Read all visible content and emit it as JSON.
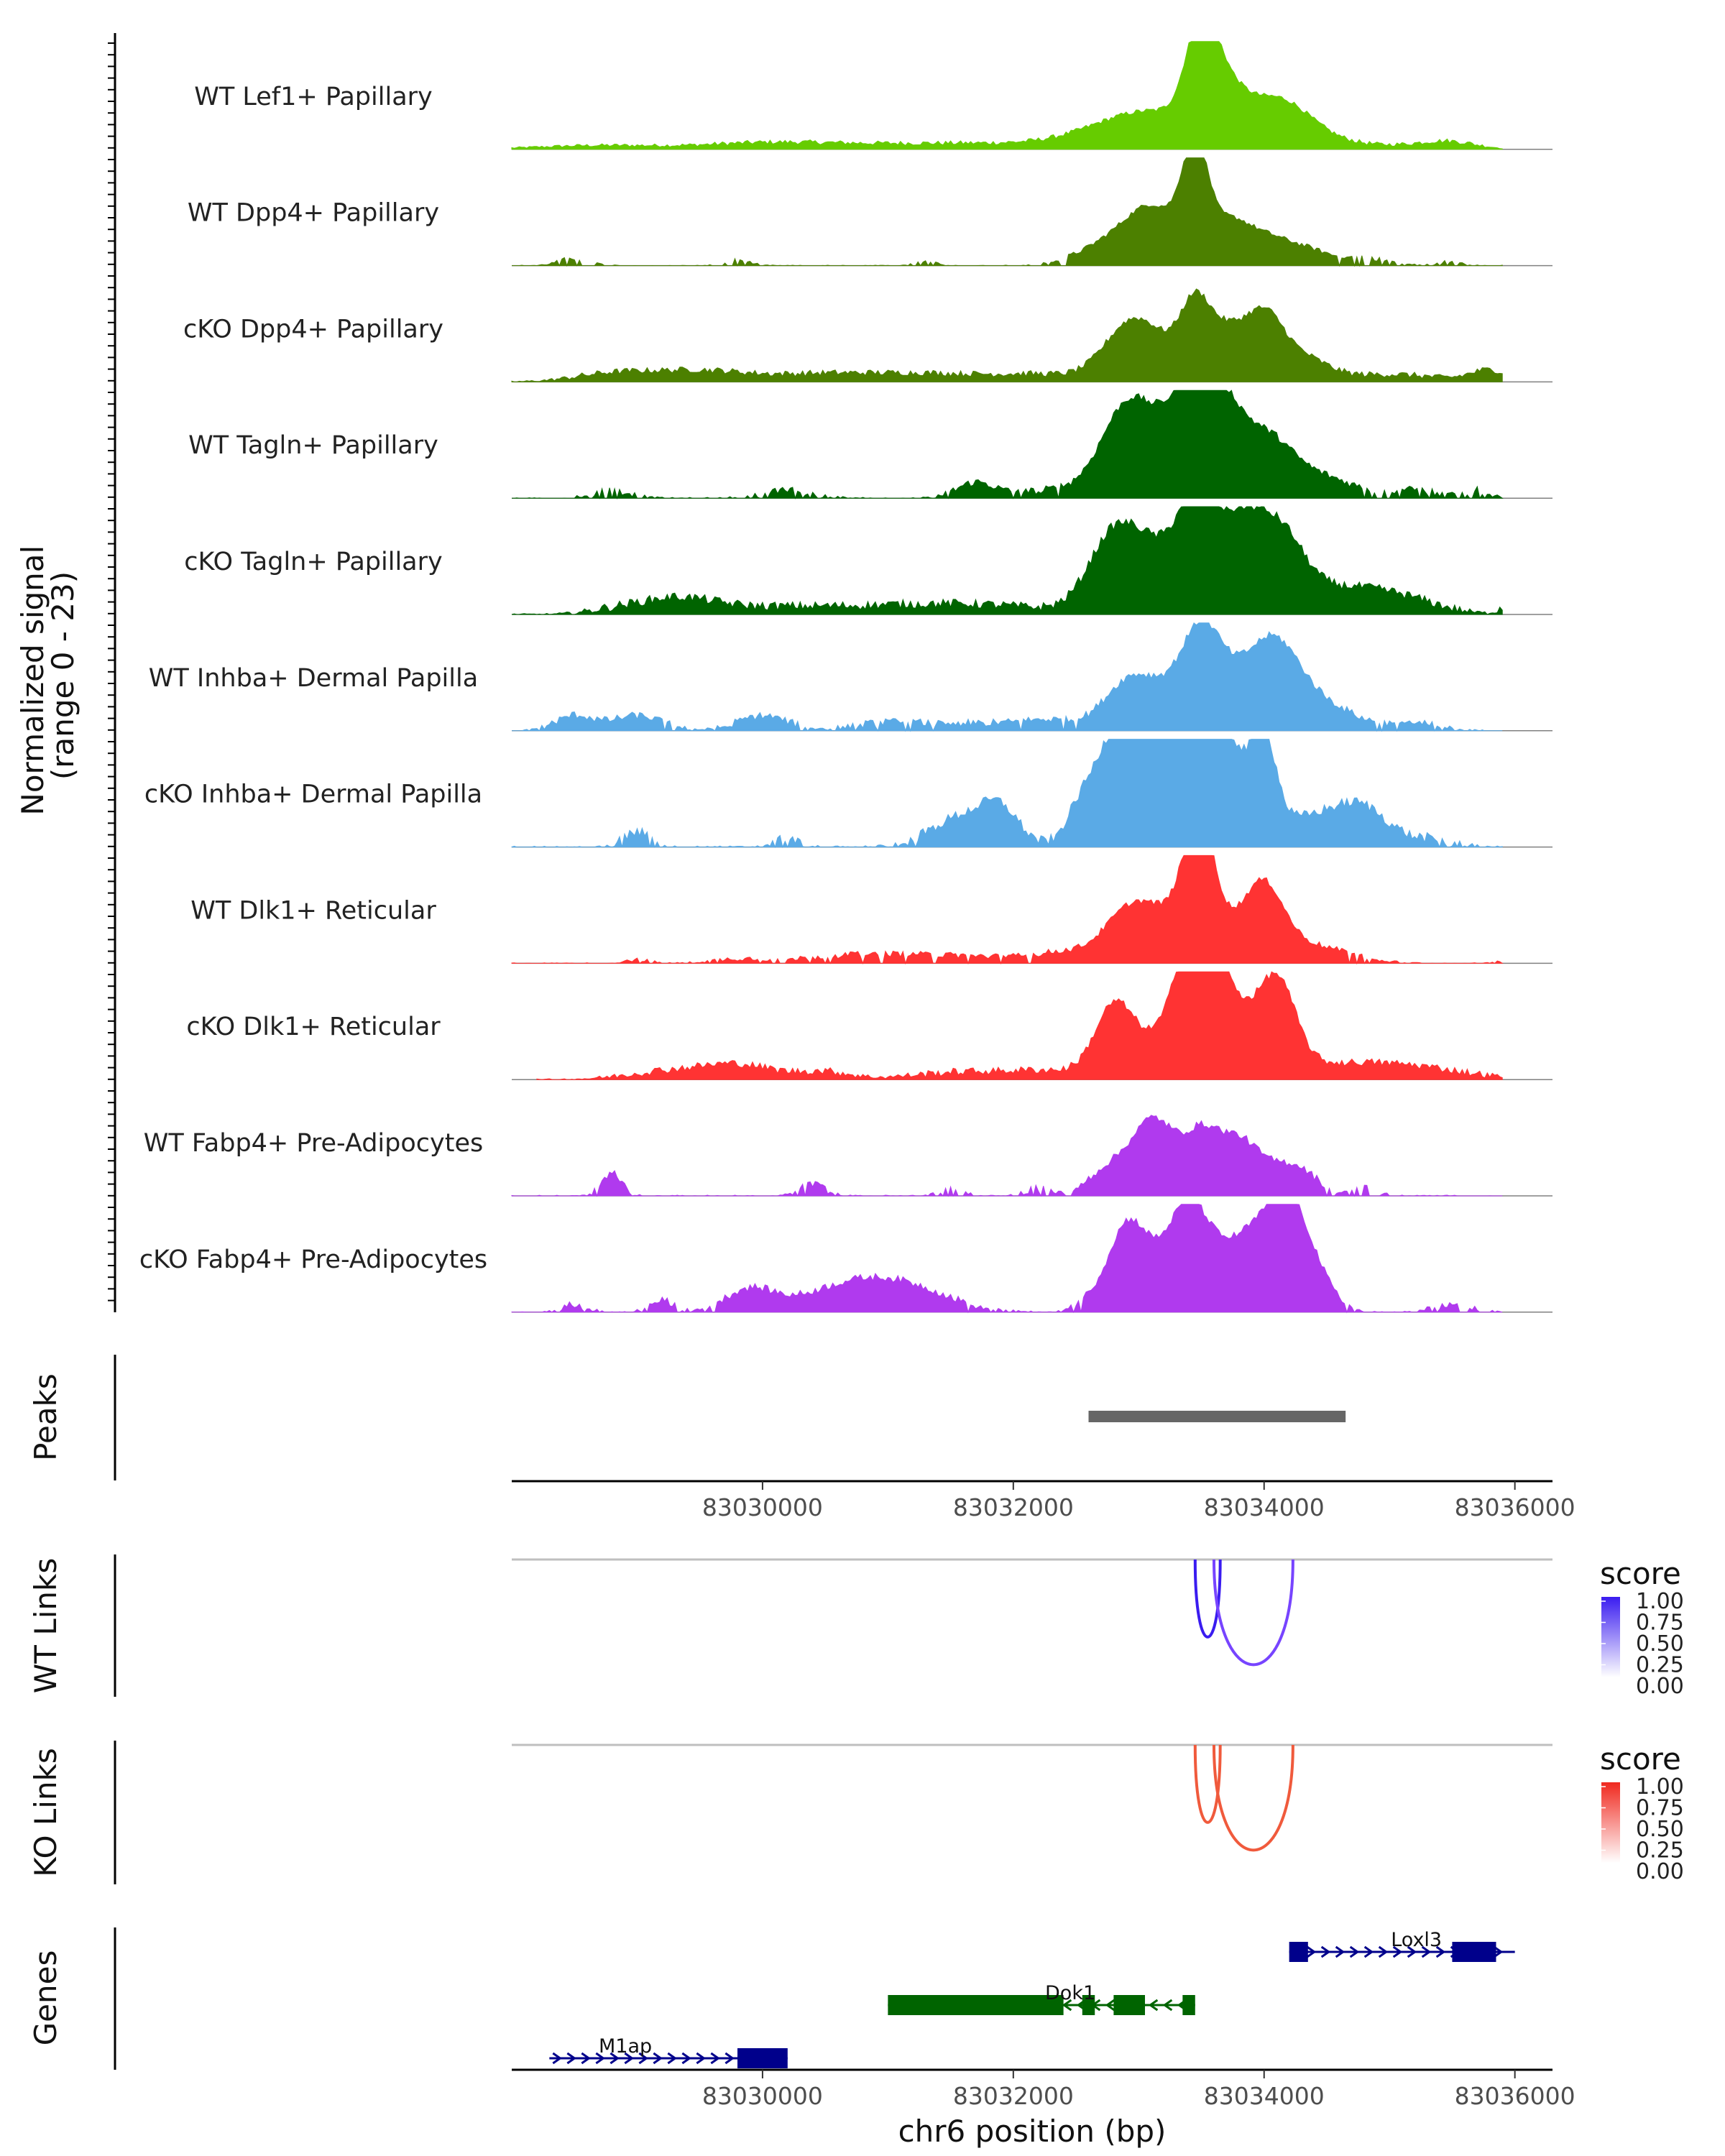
{
  "chart_data": {
    "type": "genome_coverage",
    "region": {
      "chromosome": "chr6",
      "start": 83028000,
      "end": 83036300
    },
    "coverage": {
      "ylabel": "Normalized signal\n(range 0 - 23)",
      "ylim": [
        0,
        23
      ],
      "tracks": [
        {
          "name": "WT Lef1+ Papillary",
          "color": "#66CC00",
          "peaks": [
            [
              83028700,
              0.5,
              500
            ],
            [
              83030000,
              0.7,
              500
            ],
            [
              83031000,
              0.6,
              700
            ],
            [
              83032000,
              0.5,
              600
            ],
            [
              83033100,
              5,
              450
            ],
            [
              83033500,
              13,
              120
            ],
            [
              83033700,
              5,
              150
            ],
            [
              83034100,
              6,
              250
            ],
            [
              83034500,
              1,
              300
            ],
            [
              83035300,
              0.6,
              300
            ],
            [
              83035500,
              0.6,
              200
            ]
          ],
          "noise": 0.3,
          "sparsity": 0.0,
          "segment": [
            83028000,
            83035900
          ]
        },
        {
          "name": "WT Dpp4+ Papillary",
          "color": "#4C8000",
          "peaks": [
            [
              83028500,
              1,
              120
            ],
            [
              83029800,
              0.7,
              100
            ],
            [
              83031300,
              0.6,
              100
            ],
            [
              83032900,
              4,
              300
            ],
            [
              83033150,
              5,
              200
            ],
            [
              83033450,
              14,
              100
            ],
            [
              83033700,
              4,
              150
            ],
            [
              83034000,
              4,
              250
            ],
            [
              83034400,
              1,
              150
            ],
            [
              83034800,
              1,
              200
            ],
            [
              83035500,
              0.6,
              100
            ]
          ],
          "noise": 0.3,
          "sparsity": 0.45,
          "segment": [
            83028000,
            83035900
          ]
        },
        {
          "name": "cKO Dpp4+ Papillary",
          "color": "#4C8000",
          "peaks": [
            [
              83028800,
              1,
              300
            ],
            [
              83029500,
              1.5,
              400
            ],
            [
              83030500,
              1,
              400
            ],
            [
              83031300,
              1,
              400
            ],
            [
              83032200,
              1,
              400
            ],
            [
              83032900,
              6,
              200
            ],
            [
              83033150,
              4,
              200
            ],
            [
              83033450,
              9,
              120
            ],
            [
              83033700,
              6,
              150
            ],
            [
              83034000,
              8,
              150
            ],
            [
              83034300,
              3,
              200
            ],
            [
              83035000,
              1,
              400
            ],
            [
              83035800,
              1.5,
              150
            ]
          ],
          "noise": 0.4,
          "sparsity": 0.0,
          "segment": [
            83028000,
            83035900
          ]
        },
        {
          "name": "WT Tagln+ Papillary",
          "color": "#006400",
          "peaks": [
            [
              83028800,
              1,
              150
            ],
            [
              83030200,
              1,
              200
            ],
            [
              83031700,
              2,
              150
            ],
            [
              83032300,
              1,
              300
            ],
            [
              83032900,
              8,
              200
            ],
            [
              83033100,
              6,
              300
            ],
            [
              83033450,
              12,
              180
            ],
            [
              83033700,
              7,
              150
            ],
            [
              83034000,
              7,
              200
            ],
            [
              83034400,
              3,
              300
            ],
            [
              83035200,
              1,
              200
            ],
            [
              83035700,
              1,
              100
            ]
          ],
          "noise": 0.5,
          "sparsity": 0.35,
          "segment": [
            83028000,
            83035900
          ]
        },
        {
          "name": "cKO Tagln+ Papillary",
          "color": "#006400",
          "peaks": [
            [
              83028800,
              0.5,
              200
            ],
            [
              83029300,
              2,
              300
            ],
            [
              83030000,
              0.8,
              500
            ],
            [
              83031000,
              0.8,
              600
            ],
            [
              83031800,
              1,
              600
            ],
            [
              83032800,
              10,
              200
            ],
            [
              83033150,
              7,
              200
            ],
            [
              83033480,
              15,
              150
            ],
            [
              83033800,
              9,
              150
            ],
            [
              83034100,
              11,
              200
            ],
            [
              83034600,
              3,
              300
            ],
            [
              83035100,
              2,
              300
            ],
            [
              83035900,
              0.8,
              50
            ]
          ],
          "noise": 0.6,
          "sparsity": 0.0,
          "segment": [
            83028000,
            83035900
          ]
        },
        {
          "name": "WT Inhba+ Dermal Papilla",
          "color": "#5AAAE6",
          "peaks": [
            [
              83028500,
              2,
              150
            ],
            [
              83029000,
              2,
              200
            ],
            [
              83030000,
              2,
              200
            ],
            [
              83031000,
              1,
              300
            ],
            [
              83031800,
              1,
              400
            ],
            [
              83032300,
              1,
              200
            ],
            [
              83032900,
              5,
              200
            ],
            [
              83033200,
              4,
              250
            ],
            [
              83033500,
              9,
              150
            ],
            [
              83033800,
              6,
              300
            ],
            [
              83034100,
              8,
              200
            ],
            [
              83034500,
              3,
              250
            ],
            [
              83035200,
              1,
              200
            ]
          ],
          "noise": 0.5,
          "sparsity": 0.2,
          "segment": [
            83028000,
            83035900
          ]
        },
        {
          "name": "cKO Inhba+ Dermal Papilla",
          "color": "#5AAAE6",
          "peaks": [
            [
              83029000,
              2,
              100
            ],
            [
              83030200,
              1,
              100
            ],
            [
              83031600,
              4,
              250
            ],
            [
              83031900,
              4,
              150
            ],
            [
              83032500,
              2,
              100
            ],
            [
              83032800,
              12,
              200
            ],
            [
              83033150,
              10,
              250
            ],
            [
              83033450,
              12,
              250
            ],
            [
              83033700,
              8,
              150
            ],
            [
              83034000,
              12,
              100
            ],
            [
              83034400,
              4,
              300
            ],
            [
              83034800,
              4,
              200
            ],
            [
              83035300,
              1,
              200
            ]
          ],
          "noise": 0.7,
          "sparsity": 0.3,
          "segment": [
            83028000,
            83035900
          ]
        },
        {
          "name": "WT Dlk1+ Reticular",
          "color": "#FF3333",
          "peaks": [
            [
              83029000,
              0.5,
              100
            ],
            [
              83029800,
              0.5,
              200
            ],
            [
              83030800,
              1,
              500
            ],
            [
              83031800,
              0.8,
              600
            ],
            [
              83032400,
              1,
              200
            ],
            [
              83032900,
              5,
              200
            ],
            [
              83033200,
              5,
              250
            ],
            [
              83033480,
              15,
              120
            ],
            [
              83033800,
              4,
              300
            ],
            [
              83034000,
              7,
              150
            ],
            [
              83034400,
              2,
              300
            ],
            [
              83035900,
              0.5,
              50
            ]
          ],
          "noise": 0.4,
          "sparsity": 0.2,
          "segment": [
            83028000,
            83035900
          ]
        },
        {
          "name": "cKO Dlk1+ Reticular",
          "color": "#FF3333",
          "peaks": [
            [
              83029200,
              1,
              300
            ],
            [
              83029800,
              2,
              300
            ],
            [
              83030500,
              1,
              200
            ],
            [
              83031600,
              1,
              400
            ],
            [
              83032300,
              1,
              300
            ],
            [
              83032800,
              8,
              150
            ],
            [
              83033200,
              5,
              300
            ],
            [
              83033450,
              15,
              150
            ],
            [
              83033700,
              9,
              180
            ],
            [
              83034100,
              12,
              150
            ],
            [
              83034600,
              2,
              500
            ],
            [
              83035300,
              1,
              400
            ]
          ],
          "noise": 0.5,
          "sparsity": 0.0,
          "segment": [
            83028200,
            83035900
          ]
        },
        {
          "name": "WT Fabp4+ Pre-Adipocytes",
          "color": "#B03AEE",
          "peaks": [
            [
              83028800,
              3,
              80
            ],
            [
              83030400,
              1.5,
              100
            ],
            [
              83031500,
              1,
              100
            ],
            [
              83032200,
              1,
              100
            ],
            [
              83032700,
              2,
              150
            ],
            [
              83033000,
              5,
              200
            ],
            [
              83033150,
              6,
              150
            ],
            [
              83033500,
              8,
              150
            ],
            [
              83033800,
              6,
              150
            ],
            [
              83034100,
              3,
              200
            ],
            [
              83034300,
              2,
              150
            ],
            [
              83034800,
              1,
              100
            ]
          ],
          "noise": 0.5,
          "sparsity": 0.4,
          "segment": [
            83028000,
            83035900
          ]
        },
        {
          "name": "cKO Fabp4+ Pre-Adipocytes",
          "color": "#B03AEE",
          "peaks": [
            [
              83028500,
              1,
              100
            ],
            [
              83029200,
              1.5,
              100
            ],
            [
              83029900,
              3,
              200
            ],
            [
              83030500,
              2,
              300
            ],
            [
              83030900,
              3,
              300
            ],
            [
              83031300,
              2,
              300
            ],
            [
              83032600,
              1,
              100
            ],
            [
              83032900,
              9,
              150
            ],
            [
              83033150,
              5,
              250
            ],
            [
              83033400,
              9,
              150
            ],
            [
              83033700,
              6,
              250
            ],
            [
              83034000,
              7,
              200
            ],
            [
              83034200,
              9,
              150
            ],
            [
              83034400,
              4,
              150
            ],
            [
              83035500,
              1,
              150
            ]
          ],
          "noise": 0.5,
          "sparsity": 0.35,
          "segment": [
            83028000,
            83035900
          ]
        }
      ]
    },
    "peaks_track": {
      "label": "Peaks",
      "color": "#666666",
      "regions": [
        [
          83032600,
          83034650
        ]
      ]
    },
    "x_axis": {
      "ticks": [
        83030000,
        83032000,
        83034000,
        83036000
      ],
      "tick_labels": [
        "83030000",
        "83032000",
        "83034000",
        "83036000"
      ],
      "title": "chr6 position (bp)"
    },
    "links": [
      {
        "label": "WT Links",
        "legend_title": "score",
        "color": "#7744FF",
        "legend_ticks": [
          "1.00",
          "0.75",
          "0.50",
          "0.25",
          "0.00"
        ],
        "legend_colors": [
          "#3A1CF0",
          "#FFFFFF"
        ],
        "arcs": [
          {
            "start": 83033450,
            "end": 83033650,
            "score": 0.95
          },
          {
            "start": 83033600,
            "end": 83034230,
            "score": 0.6
          }
        ]
      },
      {
        "label": "KO Links",
        "legend_title": "score",
        "color": "#F05A3C",
        "legend_ticks": [
          "1.00",
          "0.75",
          "0.50",
          "0.25",
          "0.00"
        ],
        "legend_colors": [
          "#F0281E",
          "#FFFFFF"
        ],
        "arcs": [
          {
            "start": 83033450,
            "end": 83033650,
            "score": 0.8
          },
          {
            "start": 83033600,
            "end": 83034230,
            "score": 0.6
          }
        ]
      }
    ],
    "genes": {
      "label": "Genes",
      "items": [
        {
          "name": "Loxl3",
          "row": 0,
          "strand": "+",
          "color": "#00008B",
          "start": 83034200,
          "end": 83036000,
          "exons": [
            [
              83034200,
              83034350
            ],
            [
              83035500,
              83035850
            ]
          ]
        },
        {
          "name": "Dok1",
          "row": 1,
          "strand": "-",
          "color": "#006400",
          "start": 83031000,
          "end": 83033450,
          "exons": [
            [
              83031000,
              83032400
            ],
            [
              83032550,
              83032650
            ],
            [
              83032800,
              83033050
            ],
            [
              83033350,
              83033450
            ]
          ]
        },
        {
          "name": "M1ap",
          "row": 2,
          "strand": "+",
          "color": "#00008B",
          "start": 83028300,
          "end": 83030200,
          "exons": [
            [
              83029800,
              83030200
            ]
          ]
        }
      ]
    }
  }
}
